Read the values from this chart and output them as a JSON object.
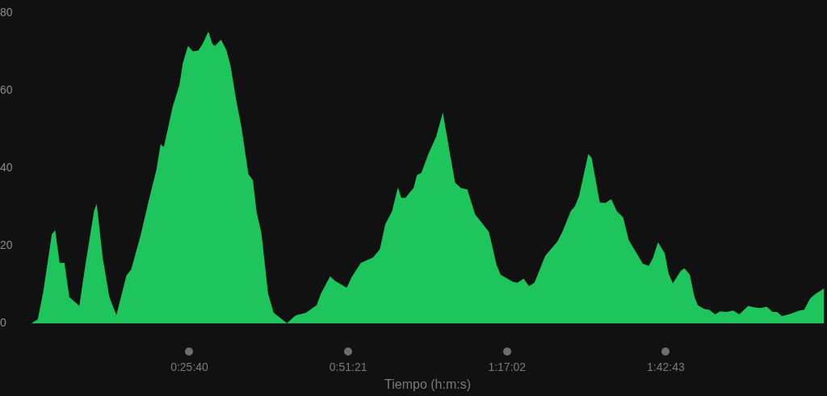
{
  "chart_data": {
    "type": "area",
    "xlabel": "Tiempo (h:m:s)",
    "x": [
      0.002,
      0.019,
      0.034,
      0.057,
      0.066,
      0.078,
      0.091,
      0.104,
      0.131,
      0.147,
      0.171,
      0.178,
      0.194,
      0.212,
      0.231,
      0.258,
      0.271,
      0.296,
      0.321,
      0.339,
      0.35,
      0.359,
      0.383,
      0.401,
      0.41,
      0.424,
      0.437,
      0.452,
      0.464,
      0.479,
      0.49,
      0.497,
      0.513,
      0.528,
      0.539,
      0.553,
      0.568,
      0.587,
      0.599,
      0.609,
      0.622,
      0.64,
      0.655,
      0.691,
      0.709,
      0.716,
      0.742,
      0.771,
      0.782,
      0.807,
      0.821,
      0.852,
      0.865,
      0.89,
      0.923,
      0.941,
      0.956,
      0.974,
      0.99,
      0.999,
      1.01,
      1.032,
      1.041,
      1.053,
      1.072,
      1.093,
      1.111,
      1.124,
      1.144,
      1.16,
      1.177,
      1.198,
      1.235,
      1.256,
      1.267,
      1.3,
      1.312,
      1.329,
      1.343,
      1.358,
      1.387,
      1.42,
      1.434,
      1.456,
      1.467,
      1.478,
      1.503,
      1.512,
      1.534,
      1.548,
      1.565,
      1.58,
      1.597,
      1.612,
      1.65,
      1.666,
      1.677,
      1.691,
      1.709,
      1.72,
      1.731,
      1.752,
      1.762,
      1.777,
      1.788,
      1.798,
      1.815,
      1.829,
      1.845,
      1.858,
      1.876,
      1.894,
      1.91,
      1.934,
      1.949,
      1.967,
      1.984,
      2.0,
      2.012,
      2.025,
      2.05,
      2.072,
      2.085,
      2.101,
      2.116,
      2.139
    ],
    "series": [
      {
        "color": "#1ec45c",
        "values": [
          0,
          1.0,
          8.2,
          23.0,
          24.0,
          15.6,
          15.6,
          6.8,
          4.5,
          14.8,
          29.1,
          30.8,
          17.0,
          6.8,
          2.1,
          12.3,
          13.9,
          22.6,
          32.8,
          39.6,
          46.2,
          45.5,
          56.0,
          61.5,
          67.1,
          71.6,
          70.2,
          70.4,
          72.2,
          75.3,
          72.0,
          71.6,
          73.2,
          70.4,
          66.3,
          58.1,
          50.7,
          38.4,
          36.9,
          28.7,
          23.2,
          7.6,
          2.7,
          0,
          1.6,
          2.1,
          2.7,
          4.7,
          7.6,
          12.1,
          10.9,
          9.2,
          11.9,
          15.6,
          17.0,
          19.1,
          25.6,
          28.9,
          35.1,
          32.4,
          32.4,
          34.9,
          38.2,
          38.8,
          43.7,
          48.2,
          54.4,
          47.2,
          36.3,
          34.9,
          34.5,
          28.1,
          23.6,
          15.0,
          12.5,
          10.7,
          10.5,
          11.5,
          9.6,
          10.5,
          17.4,
          21.1,
          23.8,
          29.0,
          30.2,
          32.8,
          43.7,
          42.7,
          31.2,
          31.0,
          32.0,
          28.9,
          27.3,
          21.5,
          15.4,
          14.8,
          16.8,
          20.9,
          18.1,
          12.7,
          10.3,
          13.5,
          14.2,
          12.5,
          7.2,
          4.7,
          3.7,
          3.5,
          2.3,
          3.1,
          2.9,
          3.3,
          2.3,
          4.5,
          4.1,
          3.9,
          4.3,
          2.9,
          2.9,
          1.8,
          2.5,
          3.3,
          3.5,
          6.4,
          7.6,
          9.0
        ]
      }
    ],
    "xlim": [
      0,
      2.14
    ],
    "xticks": [
      {
        "value": 0.42778,
        "label": "0:25:40"
      },
      {
        "value": 0.85583,
        "label": "0:51:21"
      },
      {
        "value": 1.28389,
        "label": "1:17:02"
      },
      {
        "value": 1.71194,
        "label": "1:42:43"
      }
    ],
    "ylim": [
      0,
      80
    ],
    "yticks": [
      0,
      20,
      40,
      60,
      80
    ],
    "grid": false,
    "legend": false
  }
}
